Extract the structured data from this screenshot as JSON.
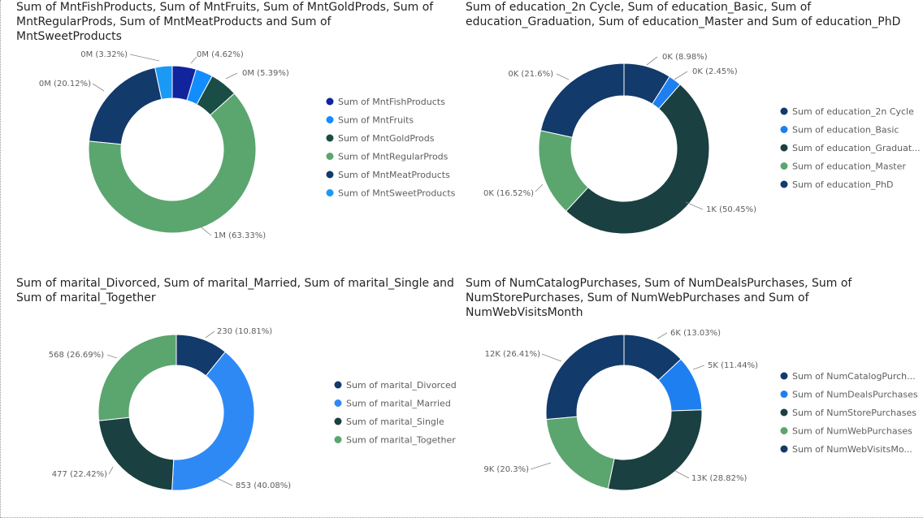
{
  "chart_data": [
    {
      "type": "pie",
      "title": "Sum of MntFishProducts, Sum of MntFruits, Sum of MntGoldProds, Sum of MntRegularProds, Sum of MntMeatProducts and Sum of MntSweetProducts",
      "categories": [
        "Sum of MntFishProducts",
        "Sum of MntFruits",
        "Sum of MntGoldProds",
        "Sum of MntRegularProds",
        "Sum of MntMeatProducts",
        "Sum of MntSweetProducts"
      ],
      "values": [
        4.62,
        3.32,
        5.39,
        63.33,
        20.12,
        3.32
      ],
      "slice_order": [
        0,
        1,
        2,
        3,
        4,
        5
      ],
      "data_labels": [
        "0M (4.62%)",
        "",
        "0M (5.39%)",
        "1M (63.33%)",
        "0M (20.12%)",
        "0M (3.32%)"
      ],
      "colors": [
        "#12239e",
        "#118dff",
        "#1a4d45",
        "#5ba56f",
        "#123a6b",
        "#1a99f5"
      ],
      "legend_position": "right"
    },
    {
      "type": "pie",
      "title": "Sum of education_2n Cycle, Sum of education_Basic, Sum of education_Graduation, Sum of education_Master and Sum of education_PhD",
      "categories": [
        "Sum of education_2n Cycle",
        "Sum of education_Basic",
        "Sum of education_Graduat...",
        "Sum of education_Master",
        "Sum of education_PhD"
      ],
      "values": [
        8.98,
        2.45,
        50.45,
        16.52,
        21.6
      ],
      "data_labels": [
        "0K (8.98%)",
        "0K (2.45%)",
        "1K (50.45%)",
        "0K (16.52%)",
        "0K (21.6%)"
      ],
      "colors": [
        "#123a6b",
        "#1e7ff0",
        "#1a4041",
        "#5ba56f",
        "#123a6b"
      ],
      "legend_position": "right"
    },
    {
      "type": "pie",
      "title": "Sum of marital_Divorced, Sum of marital_Married, Sum of marital_Single and Sum of marital_Together",
      "categories": [
        "Sum of marital_Divorced",
        "Sum of marital_Married",
        "Sum of marital_Single",
        "Sum of marital_Together"
      ],
      "values": [
        10.81,
        40.08,
        22.42,
        26.69
      ],
      "data_labels": [
        "230 (10.81%)",
        "853 (40.08%)",
        "477 (22.42%)",
        "568 (26.69%)"
      ],
      "colors": [
        "#123a6b",
        "#2f89f5",
        "#1a4041",
        "#5ba56f"
      ],
      "legend_position": "right"
    },
    {
      "type": "pie",
      "title": "Sum of NumCatalogPurchases, Sum of NumDealsPurchases, Sum of NumStorePurchases, Sum of NumWebPurchases and Sum of NumWebVisitsMonth",
      "categories": [
        "Sum of NumCatalogPurch...",
        "Sum of NumDealsPurchases",
        "Sum of NumStorePurchases",
        "Sum of NumWebPurchases",
        "Sum of NumWebVisitsMo..."
      ],
      "values": [
        13.03,
        11.44,
        28.82,
        20.3,
        26.41
      ],
      "data_labels": [
        "6K (13.03%)",
        "5K (11.44%)",
        "13K (28.82%)",
        "9K (20.3%)",
        "12K (26.41%)"
      ],
      "colors": [
        "#123a6b",
        "#1e7ff0",
        "#1a4041",
        "#5ba56f",
        "#123a6b"
      ],
      "legend_position": "right"
    }
  ],
  "chart1_extra_label": "0M (3.32%)"
}
